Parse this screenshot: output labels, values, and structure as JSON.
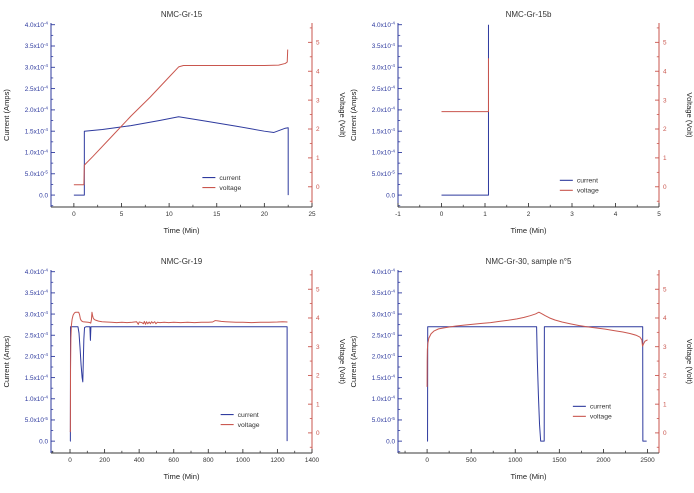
{
  "figure": {
    "background": "#ffffff",
    "colors": {
      "current": "#2e3a9e",
      "voltage": "#c9564e",
      "axis_black": "#3a3a3a",
      "text": "#333333"
    }
  },
  "chart_data": [
    {
      "type": "line",
      "title": "NMC-Gr-15",
      "xlabel": "Time (Min)",
      "ylabel_left": "Current (Amps)",
      "ylabel_right": "Voltage (Volt)",
      "x_range": [
        -2.4,
        25
      ],
      "x_ticks": [
        0,
        5,
        10,
        15,
        20,
        25
      ],
      "x_minor_step": 2.5,
      "left_range": [
        -2.8e-05,
        0.000404
      ],
      "left_ticks": [
        {
          "v": 0,
          "label": "0.0"
        },
        {
          "v": 5e-05,
          "label": "5.0x10^-5"
        },
        {
          "v": 0.0001,
          "label": "1.0x10^-4"
        },
        {
          "v": 0.00015,
          "label": "1.5x10^-4"
        },
        {
          "v": 0.0002,
          "label": "2.0x10^-4"
        },
        {
          "v": 0.00025,
          "label": "2.5x10^-4"
        },
        {
          "v": 0.0003,
          "label": "3.0x10^-4"
        },
        {
          "v": 0.00035,
          "label": "3.5x10^-4"
        },
        {
          "v": 0.0004,
          "label": "4.0x10^-4"
        }
      ],
      "left_minor_step": 2.5e-05,
      "right_range": [
        -0.7,
        5.67
      ],
      "right_ticks": [
        0,
        1,
        2,
        3,
        4,
        5
      ],
      "right_minor_step": 0.5,
      "legend_pos": [
        0.58,
        0.84
      ],
      "series": [
        {
          "name": "current",
          "color_key": "current",
          "axis": "left",
          "points": [
            [
              0,
              0
            ],
            [
              1.1,
              0
            ],
            [
              1.1,
              0.00015
            ],
            [
              3,
              0.000154
            ],
            [
              6,
              0.000163
            ],
            [
              9,
              0.000175
            ],
            [
              11,
              0.000184
            ],
            [
              14,
              0.000173
            ],
            [
              17,
              0.000162
            ],
            [
              20,
              0.00015
            ],
            [
              21,
              0.000147
            ],
            [
              22.2,
              0.000157
            ],
            [
              22.5,
              0.000158
            ],
            [
              22.5,
              0
            ]
          ]
        },
        {
          "name": "voltage",
          "color_key": "voltage",
          "axis": "right",
          "points": [
            [
              0,
              0.07
            ],
            [
              1.05,
              0.07
            ],
            [
              1.1,
              0.75
            ],
            [
              2,
              1.05
            ],
            [
              4,
              1.75
            ],
            [
              6,
              2.45
            ],
            [
              8,
              3.1
            ],
            [
              10,
              3.8
            ],
            [
              11,
              4.15
            ],
            [
              11.5,
              4.2
            ],
            [
              20,
              4.2
            ],
            [
              21.5,
              4.21
            ],
            [
              22.2,
              4.27
            ],
            [
              22.4,
              4.32
            ],
            [
              22.45,
              4.75
            ]
          ]
        }
      ]
    },
    {
      "type": "line",
      "title": "NMC-Gr-15b",
      "xlabel": "Time (Min)",
      "ylabel_left": "Current (Amps)",
      "ylabel_right": "Voltage (Volt)",
      "x_range": [
        -1,
        5
      ],
      "x_ticks": [
        -1,
        0,
        1,
        2,
        3,
        4,
        5
      ],
      "x_minor_step": 0.5,
      "left_range": [
        -2.8e-05,
        0.000404
      ],
      "left_ticks": [
        {
          "v": 0,
          "label": "0.0"
        },
        {
          "v": 5e-05,
          "label": "5.0x10^-5"
        },
        {
          "v": 0.0001,
          "label": "1.0x10^-4"
        },
        {
          "v": 0.00015,
          "label": "1.5x10^-4"
        },
        {
          "v": 0.0002,
          "label": "2.0x10^-4"
        },
        {
          "v": 0.00025,
          "label": "2.5x10^-4"
        },
        {
          "v": 0.0003,
          "label": "3.0x10^-4"
        },
        {
          "v": 0.00035,
          "label": "3.5x10^-4"
        },
        {
          "v": 0.0004,
          "label": "4.0x10^-4"
        }
      ],
      "left_minor_step": 2.5e-05,
      "right_range": [
        -0.7,
        5.67
      ],
      "right_ticks": [
        0,
        1,
        2,
        3,
        4,
        5
      ],
      "right_minor_step": 0.5,
      "legend_pos": [
        0.62,
        0.855
      ],
      "series": [
        {
          "name": "current",
          "color_key": "current",
          "axis": "left",
          "points": [
            [
              0,
              0
            ],
            [
              1.08,
              0
            ],
            [
              1.08,
              0.0004
            ]
          ]
        },
        {
          "name": "voltage",
          "color_key": "voltage",
          "axis": "right",
          "points": [
            [
              0,
              2.6
            ],
            [
              1.08,
              2.6
            ],
            [
              1.08,
              4.45
            ]
          ]
        }
      ]
    },
    {
      "type": "line",
      "title": "NMC-Gr-19",
      "xlabel": "Time (Min)",
      "ylabel_left": "Current (Amps)",
      "ylabel_right": "Voltage (Volt)",
      "x_range": [
        -110,
        1400
      ],
      "x_ticks": [
        0,
        200,
        400,
        600,
        800,
        1000,
        1200,
        1400
      ],
      "x_minor_step": 100,
      "left_range": [
        -2.8e-05,
        0.000404
      ],
      "left_ticks": [
        {
          "v": 0,
          "label": "0.0"
        },
        {
          "v": 5e-05,
          "label": "5.0x10^-5"
        },
        {
          "v": 0.0001,
          "label": "1.0x10^-4"
        },
        {
          "v": 0.00015,
          "label": "1.5x10^-4"
        },
        {
          "v": 0.0002,
          "label": "2.0x10^-4"
        },
        {
          "v": 0.00025,
          "label": "2.5x10^-4"
        },
        {
          "v": 0.0003,
          "label": "3.0x10^-4"
        },
        {
          "v": 0.00035,
          "label": "3.5x10^-4"
        },
        {
          "v": 0.0004,
          "label": "4.0x10^-4"
        }
      ],
      "left_minor_step": 2.5e-05,
      "right_range": [
        -0.7,
        5.67
      ],
      "right_ticks": [
        0,
        1,
        2,
        3,
        4,
        5
      ],
      "right_minor_step": 0.5,
      "legend_pos": [
        0.65,
        0.79
      ],
      "series": [
        {
          "name": "current",
          "color_key": "current",
          "axis": "left",
          "points": [
            [
              0,
              0
            ],
            [
              2,
              0
            ],
            [
              3,
              0.00027
            ],
            [
              46,
              0.00027
            ],
            [
              52,
              0.000255
            ],
            [
              58,
              0.00022
            ],
            [
              64,
              0.00018
            ],
            [
              70,
              0.00015
            ],
            [
              74,
              0.00014
            ],
            [
              77,
              0.00019
            ],
            [
              80,
              0.00024
            ],
            [
              84,
              0.000268
            ],
            [
              92,
              0.00027
            ],
            [
              115,
              0.00027
            ],
            [
              118,
              0.000238
            ],
            [
              121,
              0.00027
            ],
            [
              1256,
              0.00027
            ],
            [
              1256,
              0
            ]
          ]
        },
        {
          "name": "voltage",
          "color_key": "voltage",
          "axis": "right",
          "points": [
            [
              0,
              0.03
            ],
            [
              2,
              0.05
            ],
            [
              3,
              2.2
            ],
            [
              5,
              3.3
            ],
            [
              8,
              3.75
            ],
            [
              12,
              3.95
            ],
            [
              18,
              4.1
            ],
            [
              25,
              4.17
            ],
            [
              32,
              4.2
            ],
            [
              50,
              4.2
            ],
            [
              55,
              4.12
            ],
            [
              60,
              3.97
            ],
            [
              66,
              3.9
            ],
            [
              75,
              3.87
            ],
            [
              90,
              3.86
            ],
            [
              105,
              3.85
            ],
            [
              115,
              3.84
            ],
            [
              120,
              3.82
            ],
            [
              124,
              3.95
            ],
            [
              127,
              4.2
            ],
            [
              130,
              4.1
            ],
            [
              134,
              4.0
            ],
            [
              140,
              3.95
            ],
            [
              150,
              3.92
            ],
            [
              165,
              3.89
            ],
            [
              185,
              3.87
            ],
            [
              210,
              3.86
            ],
            [
              240,
              3.85
            ],
            [
              270,
              3.84
            ],
            [
              300,
              3.85
            ],
            [
              330,
              3.84
            ],
            [
              360,
              3.85
            ],
            [
              385,
              3.87
            ],
            [
              395,
              3.78
            ],
            [
              400,
              3.86
            ],
            [
              415,
              3.84
            ],
            [
              425,
              3.8
            ],
            [
              430,
              3.88
            ],
            [
              437,
              3.78
            ],
            [
              443,
              3.87
            ],
            [
              450,
              3.8
            ],
            [
              458,
              3.86
            ],
            [
              465,
              3.8
            ],
            [
              472,
              3.87
            ],
            [
              480,
              3.82
            ],
            [
              490,
              3.87
            ],
            [
              497,
              3.8
            ],
            [
              505,
              3.85
            ],
            [
              520,
              3.84
            ],
            [
              545,
              3.85
            ],
            [
              570,
              3.84
            ],
            [
              600,
              3.85
            ],
            [
              640,
              3.84
            ],
            [
              680,
              3.85
            ],
            [
              720,
              3.84
            ],
            [
              760,
              3.85
            ],
            [
              800,
              3.85
            ],
            [
              825,
              3.86
            ],
            [
              840,
              3.91
            ],
            [
              855,
              3.9
            ],
            [
              875,
              3.88
            ],
            [
              900,
              3.87
            ],
            [
              930,
              3.86
            ],
            [
              960,
              3.85
            ],
            [
              1000,
              3.85
            ],
            [
              1050,
              3.84
            ],
            [
              1100,
              3.85
            ],
            [
              1150,
              3.85
            ],
            [
              1200,
              3.86
            ],
            [
              1230,
              3.87
            ],
            [
              1258,
              3.86
            ]
          ]
        }
      ]
    },
    {
      "type": "line",
      "title": "NMC-Gr-30, sample n°5",
      "xlabel": "Time (Min)",
      "ylabel_left": "Current (Amps)",
      "ylabel_right": "Voltage (Volt)",
      "x_range": [
        -330,
        2630
      ],
      "x_ticks": [
        0,
        500,
        1000,
        1500,
        2000,
        2500
      ],
      "x_minor_step": 250,
      "left_range": [
        -2.8e-05,
        0.000404
      ],
      "left_ticks": [
        {
          "v": 0,
          "label": "0.0"
        },
        {
          "v": 5e-05,
          "label": "5.0x10^-5"
        },
        {
          "v": 0.0001,
          "label": "1.0x10^-4"
        },
        {
          "v": 0.00015,
          "label": "1.5x10^-4"
        },
        {
          "v": 0.0002,
          "label": "2.0x10^-4"
        },
        {
          "v": 0.00025,
          "label": "2.5x10^-4"
        },
        {
          "v": 0.0003,
          "label": "3.0x10^-4"
        },
        {
          "v": 0.00035,
          "label": "3.5x10^-4"
        },
        {
          "v": 0.0004,
          "label": "4.0x10^-4"
        }
      ],
      "left_minor_step": 2.5e-05,
      "right_range": [
        -0.7,
        5.67
      ],
      "right_ticks": [
        0,
        1,
        2,
        3,
        4,
        5
      ],
      "right_minor_step": 0.5,
      "legend_pos": [
        0.67,
        0.745
      ],
      "series": [
        {
          "name": "current",
          "color_key": "current",
          "axis": "left",
          "points": [
            [
              0,
              0
            ],
            [
              5,
              0
            ],
            [
              7,
              0.00027
            ],
            [
              1242,
              0.00027
            ],
            [
              1250,
              0.00019
            ],
            [
              1262,
              0.00011
            ],
            [
              1275,
              4e-05
            ],
            [
              1288,
              0
            ],
            [
              1328,
              0
            ],
            [
              1330,
              0.00027
            ],
            [
              2445,
              0.00027
            ],
            [
              2447,
              0
            ],
            [
              2490,
              0
            ]
          ]
        },
        {
          "name": "voltage",
          "color_key": "voltage",
          "axis": "right",
          "points": [
            [
              0,
              1.6
            ],
            [
              1,
              2.5
            ],
            [
              3,
              2.9
            ],
            [
              8,
              3.1
            ],
            [
              20,
              3.3
            ],
            [
              45,
              3.45
            ],
            [
              80,
              3.55
            ],
            [
              130,
              3.62
            ],
            [
              200,
              3.66
            ],
            [
              260,
              3.69
            ],
            [
              330,
              3.72
            ],
            [
              420,
              3.75
            ],
            [
              520,
              3.78
            ],
            [
              620,
              3.81
            ],
            [
              720,
              3.84
            ],
            [
              820,
              3.88
            ],
            [
              920,
              3.92
            ],
            [
              1020,
              3.97
            ],
            [
              1100,
              4.02
            ],
            [
              1170,
              4.08
            ],
            [
              1230,
              4.14
            ],
            [
              1268,
              4.2
            ],
            [
              1300,
              4.15
            ],
            [
              1340,
              4.08
            ],
            [
              1390,
              4.0
            ],
            [
              1450,
              3.93
            ],
            [
              1530,
              3.86
            ],
            [
              1620,
              3.8
            ],
            [
              1720,
              3.74
            ],
            [
              1820,
              3.69
            ],
            [
              1920,
              3.65
            ],
            [
              2020,
              3.61
            ],
            [
              2120,
              3.56
            ],
            [
              2220,
              3.51
            ],
            [
              2300,
              3.46
            ],
            [
              2370,
              3.4
            ],
            [
              2415,
              3.33
            ],
            [
              2435,
              3.24
            ],
            [
              2443,
              3.02
            ],
            [
              2455,
              3.1
            ],
            [
              2470,
              3.19
            ],
            [
              2500,
              3.24
            ]
          ]
        }
      ]
    }
  ]
}
